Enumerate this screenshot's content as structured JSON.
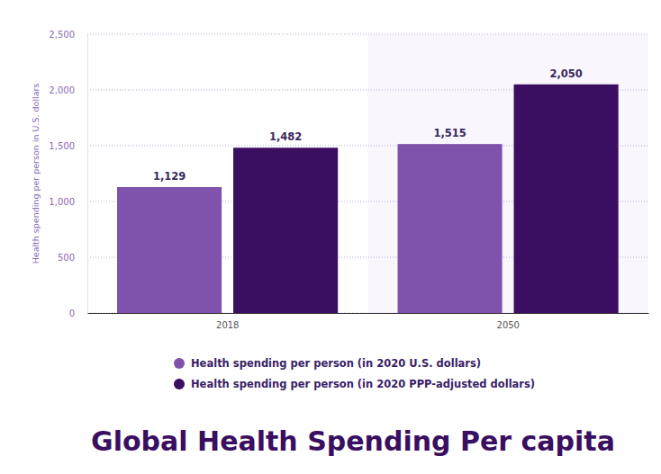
{
  "chart_data": {
    "type": "bar",
    "title": "Global Health Spending Per capita",
    "y_label": "Health spending per person in U.S. dollars",
    "categories": [
      "2018",
      "2050"
    ],
    "series": [
      {
        "name": "Health spending per person (in 2020 U.S. dollars)",
        "color": "#7f53ac",
        "values": [
          1129,
          1515
        ],
        "value_labels": [
          "1,129",
          "1,515"
        ]
      },
      {
        "name": "Health spending per person (in 2020 PPP-adjusted dollars)",
        "color": "#3a0e60",
        "values": [
          1482,
          2050
        ],
        "value_labels": [
          "1,482",
          "2,050"
        ]
      }
    ],
    "ylim": [
      0,
      2500
    ],
    "yticks": [
      0,
      500,
      {
        "value": 1000,
        "label": "1,000"
      },
      {
        "value": 1500,
        "label": "1,500"
      },
      {
        "value": 2000,
        "label": "2,000"
      },
      {
        "value": 2500,
        "label": "2,500"
      }
    ],
    "grid": true,
    "data_labels": true,
    "legend": "bottom"
  }
}
